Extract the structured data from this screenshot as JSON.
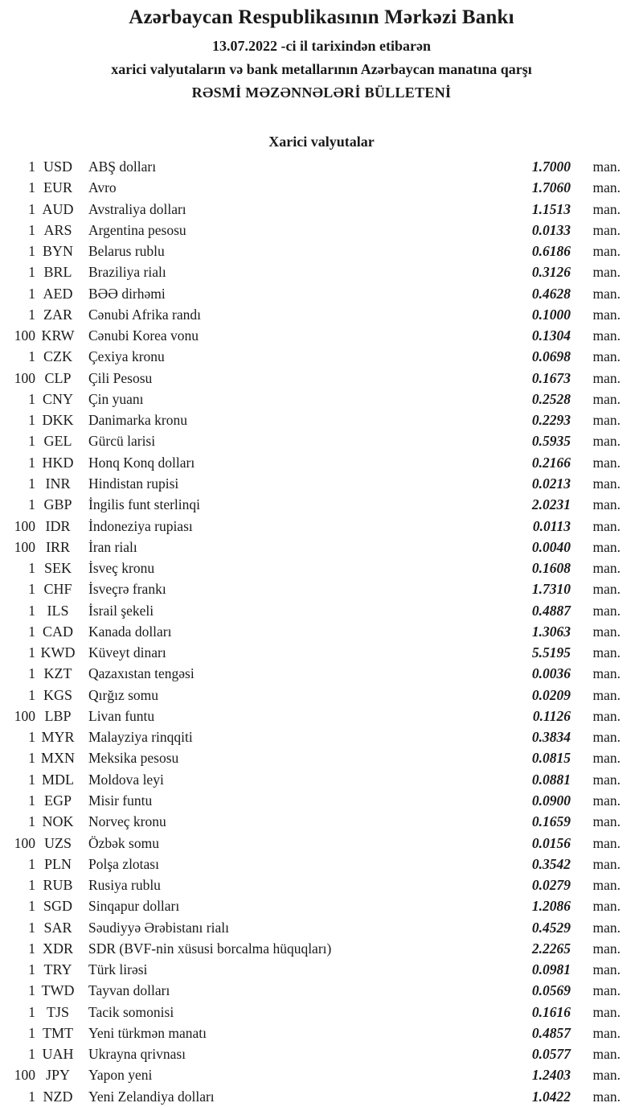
{
  "colors": {
    "background": "#ffffff",
    "text": "#1a1a1a"
  },
  "header": {
    "bank_name": "Azərbaycan Respublikasının Mərkəzi Bankı",
    "date_line": "13.07.2022 -ci il tarixindən etibarən",
    "subject_line": "xarici valyutaların və bank metallarının Azərbaycan manatına qarşı",
    "bulletin_title": "RƏSMİ MƏZƏNNƏLƏRİ BÜLLETENİ"
  },
  "section_title": "Xarici valyutalar",
  "unit_suffix": "man.",
  "rates": [
    {
      "qty": "1",
      "code": "USD",
      "name": "ABŞ dolları",
      "rate": "1.7000"
    },
    {
      "qty": "1",
      "code": "EUR",
      "name": "Avro",
      "rate": "1.7060"
    },
    {
      "qty": "1",
      "code": "AUD",
      "name": "Avstraliya dolları",
      "rate": "1.1513"
    },
    {
      "qty": "1",
      "code": "ARS",
      "name": "Argentina pesosu",
      "rate": "0.0133"
    },
    {
      "qty": "1",
      "code": "BYN",
      "name": "Belarus rublu",
      "rate": "0.6186"
    },
    {
      "qty": "1",
      "code": "BRL",
      "name": "Braziliya rialı",
      "rate": "0.3126"
    },
    {
      "qty": "1",
      "code": "AED",
      "name": "BƏƏ dirhəmi",
      "rate": "0.4628"
    },
    {
      "qty": "1",
      "code": "ZAR",
      "name": "Cənubi Afrika randı",
      "rate": "0.1000"
    },
    {
      "qty": "100",
      "code": "KRW",
      "name": "Cənubi Korea vonu",
      "rate": "0.1304"
    },
    {
      "qty": "1",
      "code": "CZK",
      "name": "Çexiya kronu",
      "rate": "0.0698"
    },
    {
      "qty": "100",
      "code": "CLP",
      "name": "Çili Pesosu",
      "rate": "0.1673"
    },
    {
      "qty": "1",
      "code": "CNY",
      "name": "Çin yuanı",
      "rate": "0.2528"
    },
    {
      "qty": "1",
      "code": "DKK",
      "name": "Danimarka kronu",
      "rate": "0.2293"
    },
    {
      "qty": "1",
      "code": "GEL",
      "name": "Gürcü larisi",
      "rate": "0.5935"
    },
    {
      "qty": "1",
      "code": "HKD",
      "name": "Honq Konq dolları",
      "rate": "0.2166"
    },
    {
      "qty": "1",
      "code": "INR",
      "name": "Hindistan rupisi",
      "rate": "0.0213"
    },
    {
      "qty": "1",
      "code": "GBP",
      "name": "İngilis funt sterlinqi",
      "rate": "2.0231"
    },
    {
      "qty": "100",
      "code": "IDR",
      "name": "İndoneziya rupiası",
      "rate": "0.0113"
    },
    {
      "qty": "100",
      "code": "IRR",
      "name": "İran rialı",
      "rate": "0.0040"
    },
    {
      "qty": "1",
      "code": "SEK",
      "name": "İsveç kronu",
      "rate": "0.1608"
    },
    {
      "qty": "1",
      "code": "CHF",
      "name": "İsveçrə frankı",
      "rate": "1.7310"
    },
    {
      "qty": "1",
      "code": "ILS",
      "name": "İsrail şekeli",
      "rate": "0.4887"
    },
    {
      "qty": "1",
      "code": "CAD",
      "name": "Kanada dolları",
      "rate": "1.3063"
    },
    {
      "qty": "1",
      "code": "KWD",
      "name": "Küveyt dinarı",
      "rate": "5.5195"
    },
    {
      "qty": "1",
      "code": "KZT",
      "name": "Qazaxıstan tengəsi",
      "rate": "0.0036"
    },
    {
      "qty": "1",
      "code": "KGS",
      "name": "Qırğız somu",
      "rate": "0.0209"
    },
    {
      "qty": "100",
      "code": "LBP",
      "name": "Livan funtu",
      "rate": "0.1126"
    },
    {
      "qty": "1",
      "code": "MYR",
      "name": "Malayziya rinqqiti",
      "rate": "0.3834"
    },
    {
      "qty": "1",
      "code": "MXN",
      "name": "Meksika pesosu",
      "rate": "0.0815"
    },
    {
      "qty": "1",
      "code": "MDL",
      "name": "Moldova leyi",
      "rate": "0.0881"
    },
    {
      "qty": "1",
      "code": "EGP",
      "name": "Misir funtu",
      "rate": "0.0900"
    },
    {
      "qty": "1",
      "code": "NOK",
      "name": "Norveç kronu",
      "rate": "0.1659"
    },
    {
      "qty": "100",
      "code": "UZS",
      "name": "Özbək somu",
      "rate": "0.0156"
    },
    {
      "qty": "1",
      "code": "PLN",
      "name": "Polşa zlotası",
      "rate": "0.3542"
    },
    {
      "qty": "1",
      "code": "RUB",
      "name": "Rusiya rublu",
      "rate": "0.0279"
    },
    {
      "qty": "1",
      "code": "SGD",
      "name": "Sinqapur dolları",
      "rate": "1.2086"
    },
    {
      "qty": "1",
      "code": "SAR",
      "name": "Səudiyyə Ərəbistanı rialı",
      "rate": "0.4529"
    },
    {
      "qty": "1",
      "code": "XDR",
      "name": "SDR (BVF-nin xüsusi borcalma hüquqları)",
      "rate": "2.2265"
    },
    {
      "qty": "1",
      "code": "TRY",
      "name": "Türk lirəsi",
      "rate": "0.0981"
    },
    {
      "qty": "1",
      "code": "TWD",
      "name": "Tayvan dolları",
      "rate": "0.0569"
    },
    {
      "qty": "1",
      "code": "TJS",
      "name": "Tacik somonisi",
      "rate": "0.1616"
    },
    {
      "qty": "1",
      "code": "TMT",
      "name": "Yeni türkmən manatı",
      "rate": "0.4857"
    },
    {
      "qty": "1",
      "code": "UAH",
      "name": "Ukrayna qrivnası",
      "rate": "0.0577"
    },
    {
      "qty": "100",
      "code": "JPY",
      "name": "Yapon yeni",
      "rate": "1.2403"
    },
    {
      "qty": "1",
      "code": "NZD",
      "name": "Yeni Zelandiya dolları",
      "rate": "1.0422"
    }
  ]
}
